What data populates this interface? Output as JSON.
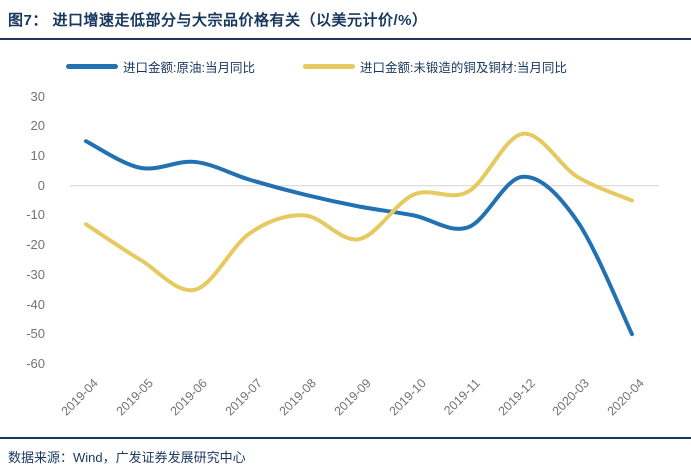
{
  "header": {
    "title": "图7： 进口增速走低部分与大宗品价格有关（以美元计价/%）"
  },
  "footer": {
    "text": "数据来源：Wind，广发证券发展研究中心"
  },
  "colors": {
    "navy": "#17375E",
    "blue_series": "#2272B2",
    "yellow_series": "#E6C95F",
    "axis_text": "#737373",
    "gridline": "#D9D9D9"
  },
  "chart_data": {
    "type": "line",
    "title": "进口增速走低部分与大宗品价格有关（以美元计价/%）",
    "categories": [
      "2019-04",
      "2019-05",
      "2019-06",
      "2019-07",
      "2019-08",
      "2019-09",
      "2019-10",
      "2019-11",
      "2019-12",
      "2020-03",
      "2020-04"
    ],
    "series": [
      {
        "id": "crude-oil",
        "name": "进口金额:原油:当月同比",
        "color": "#2272B2",
        "values": [
          15,
          6,
          8,
          2,
          -3,
          -7,
          -10,
          -14,
          3,
          -12,
          -50
        ]
      },
      {
        "id": "copper",
        "name": "进口金额:未锻造的铜及铜材:当月同比",
        "color": "#E6C95F",
        "values": [
          -13,
          -25,
          -35,
          -16,
          -10,
          -18,
          -3,
          -2,
          17.5,
          3,
          -5
        ]
      }
    ],
    "y_ticks": [
      30,
      20,
      10,
      0,
      -10,
      -20,
      -30,
      -40,
      -50,
      -60
    ],
    "ylim": [
      -60,
      30
    ],
    "xlabel": "",
    "ylabel": "",
    "grid": "zero-line-only",
    "legend_position": "top",
    "line_style": "smooth"
  }
}
